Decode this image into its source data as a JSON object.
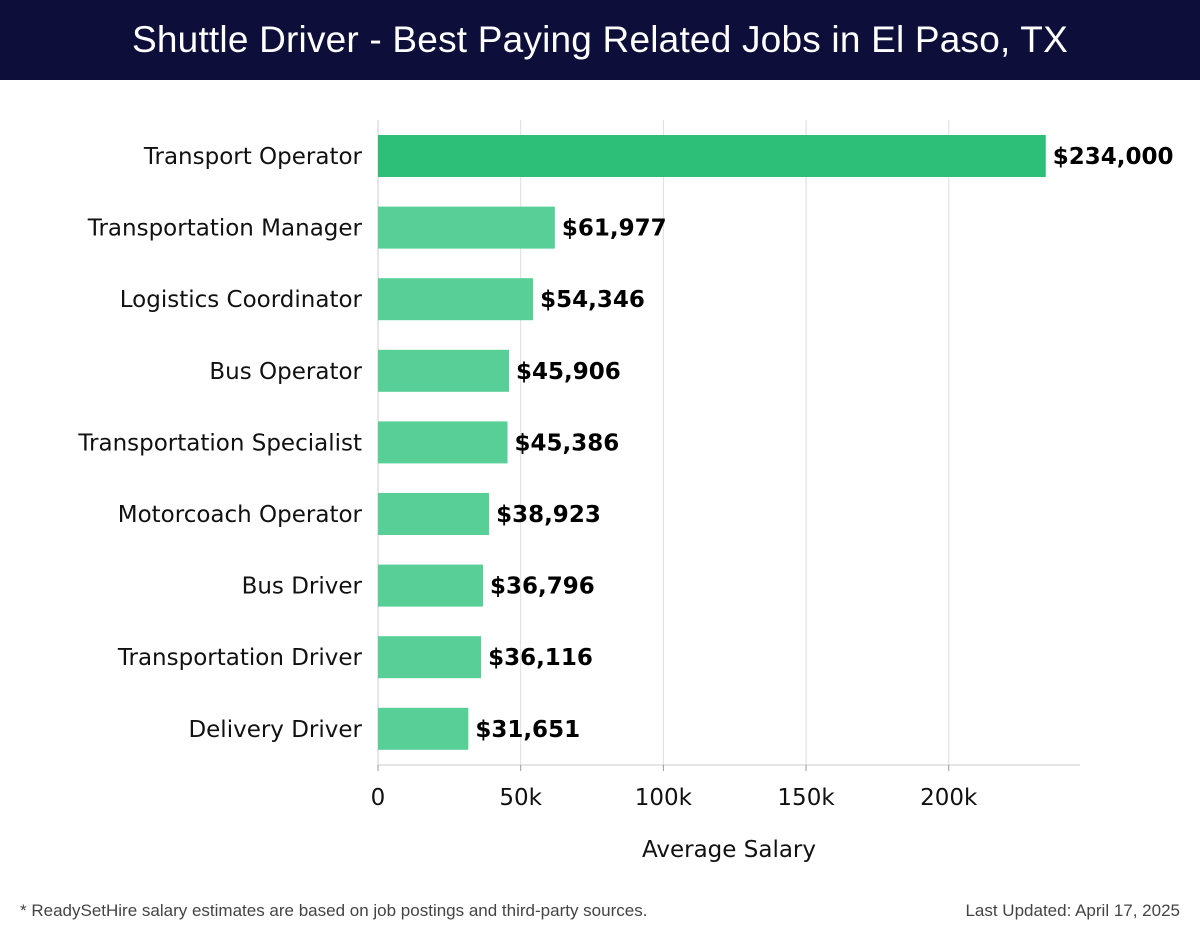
{
  "title": "Shuttle Driver - Best Paying Related Jobs in El Paso, TX",
  "footnote": "* ReadySetHire salary estimates are based on job postings and third-party sources.",
  "last_updated": "Last Updated: April 17, 2025",
  "colors": {
    "title_background": "#0d0f3a",
    "top_bar": "#2dbf78",
    "bars": "#58cf97",
    "grid": "#dddddd"
  },
  "chart_data": {
    "type": "bar",
    "orientation": "horizontal",
    "categories": [
      "Transport Operator",
      "Transportation Manager",
      "Logistics Coordinator",
      "Bus Operator",
      "Transportation Specialist",
      "Motorcoach Operator",
      "Bus Driver",
      "Transportation Driver",
      "Delivery Driver"
    ],
    "values": [
      234000,
      61977,
      54346,
      45906,
      45386,
      38923,
      36796,
      36116,
      31651
    ],
    "data_labels": [
      "$234,000",
      "$61,977",
      "$54,346",
      "$45,906",
      "$45,386",
      "$38,923",
      "$36,796",
      "$36,116",
      "$31,651"
    ],
    "xlabel": "Average Salary",
    "ylabel": "",
    "xlim": [
      0,
      246000
    ],
    "xticks": [
      0,
      50000,
      100000,
      150000,
      200000
    ],
    "xtick_labels": [
      "0",
      "50k",
      "100k",
      "150k",
      "200k"
    ],
    "grid": "vertical",
    "legend": "none"
  }
}
